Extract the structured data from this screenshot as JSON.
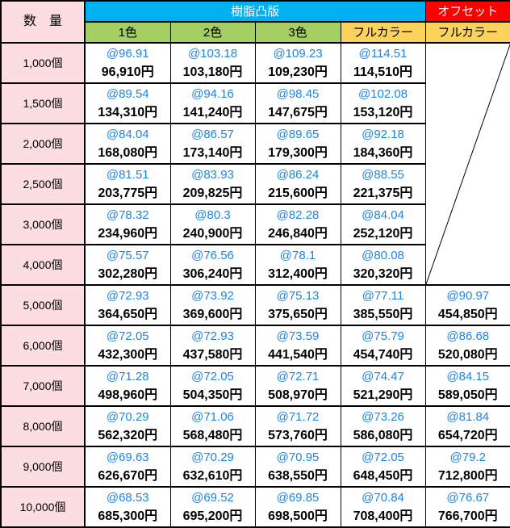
{
  "header": {
    "quantity_label": "数　量",
    "resin_group_label": "樹脂凸版",
    "offset_group_label": "オフセット",
    "subcols": [
      {
        "key": "1color",
        "label": "1色",
        "style": "green"
      },
      {
        "key": "2color",
        "label": "2色",
        "style": "green"
      },
      {
        "key": "3color",
        "label": "3色",
        "style": "green"
      },
      {
        "key": "fullcolor",
        "label": "フルカラー",
        "style": "gold"
      },
      {
        "key": "offset-fullcolor",
        "label": "フルカラー",
        "style": "gold"
      }
    ]
  },
  "offset_empty_row_count": 6,
  "rows": [
    {
      "qty": "1,000個",
      "cells": [
        [
          "@96.91",
          "96,910円"
        ],
        [
          "@103.18",
          "103,180円"
        ],
        [
          "@109.23",
          "109,230円"
        ],
        [
          "@114.51",
          "114,510円"
        ],
        null
      ]
    },
    {
      "qty": "1,500個",
      "cells": [
        [
          "@89.54",
          "134,310円"
        ],
        [
          "@94.16",
          "141,240円"
        ],
        [
          "@98.45",
          "147,675円"
        ],
        [
          "@102.08",
          "153,120円"
        ],
        null
      ]
    },
    {
      "qty": "2,000個",
      "cells": [
        [
          "@84.04",
          "168,080円"
        ],
        [
          "@86.57",
          "173,140円"
        ],
        [
          "@89.65",
          "179,300円"
        ],
        [
          "@92.18",
          "184,360円"
        ],
        null
      ]
    },
    {
      "qty": "2,500個",
      "cells": [
        [
          "@81.51",
          "203,775円"
        ],
        [
          "@83.93",
          "209,825円"
        ],
        [
          "@86.24",
          "215,600円"
        ],
        [
          "@88.55",
          "221,375円"
        ],
        null
      ]
    },
    {
      "qty": "3,000個",
      "cells": [
        [
          "@78.32",
          "234,960円"
        ],
        [
          "@80.3",
          "240,900円"
        ],
        [
          "@82.28",
          "246,840円"
        ],
        [
          "@84.04",
          "252,120円"
        ],
        null
      ]
    },
    {
      "qty": "4,000個",
      "cells": [
        [
          "@75.57",
          "302,280円"
        ],
        [
          "@76.56",
          "306,240円"
        ],
        [
          "@78.1",
          "312,400円"
        ],
        [
          "@80.08",
          "320,320円"
        ],
        null
      ]
    },
    {
      "qty": "5,000個",
      "cells": [
        [
          "@72.93",
          "364,650円"
        ],
        [
          "@73.92",
          "369,600円"
        ],
        [
          "@75.13",
          "375,650円"
        ],
        [
          "@77.11",
          "385,550円"
        ],
        [
          "@90.97",
          "454,850円"
        ]
      ]
    },
    {
      "qty": "6,000個",
      "cells": [
        [
          "@72.05",
          "432,300円"
        ],
        [
          "@72.93",
          "437,580円"
        ],
        [
          "@73.59",
          "441,540円"
        ],
        [
          "@75.79",
          "454,740円"
        ],
        [
          "@86.68",
          "520,080円"
        ]
      ]
    },
    {
      "qty": "7,000個",
      "cells": [
        [
          "@71.28",
          "498,960円"
        ],
        [
          "@72.05",
          "504,350円"
        ],
        [
          "@72.71",
          "508,970円"
        ],
        [
          "@74.47",
          "521,290円"
        ],
        [
          "@84.15",
          "589,050円"
        ]
      ]
    },
    {
      "qty": "8,000個",
      "cells": [
        [
          "@70.29",
          "562,320円"
        ],
        [
          "@71.06",
          "568,480円"
        ],
        [
          "@71.72",
          "573,760円"
        ],
        [
          "@73.26",
          "586,080円"
        ],
        [
          "@81.84",
          "654,720円"
        ]
      ]
    },
    {
      "qty": "9,000個",
      "cells": [
        [
          "@69.63",
          "626,670円"
        ],
        [
          "@70.29",
          "632,610円"
        ],
        [
          "@70.95",
          "638,550円"
        ],
        [
          "@72.05",
          "648,450円"
        ],
        [
          "@79.2",
          "712,800円"
        ]
      ]
    },
    {
      "qty": "10,000個",
      "cells": [
        [
          "@68.53",
          "685,300円"
        ],
        [
          "@69.52",
          "695,200円"
        ],
        [
          "@69.85",
          "698,500円"
        ],
        [
          "@70.84",
          "708,400円"
        ],
        [
          "@76.67",
          "766,700円"
        ]
      ]
    }
  ],
  "colors": {
    "resin_header_bg": "#00b0f0",
    "offset_header_bg": "#ff0000",
    "color_subheader_bg": "#a5cf63",
    "fullcolor_subheader_bg": "#fbd25c",
    "quantity_bg": "#fbdde2",
    "unit_price_text": "#1d85e2",
    "grid_line": "#000000"
  }
}
